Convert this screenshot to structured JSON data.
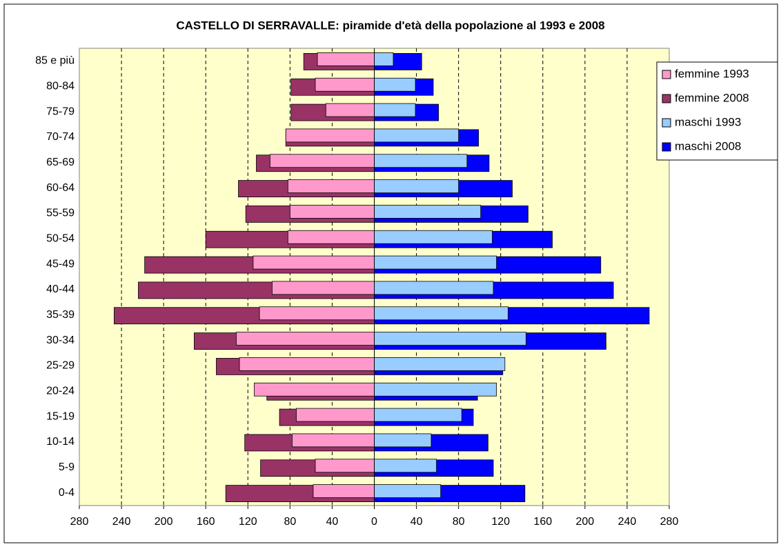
{
  "chart_data": {
    "type": "pyramid",
    "title": "CASTELLO DI SERRAVALLE: piramide d'età della popolazione al 1993 e 2008",
    "categories": [
      "0-4",
      "5-9",
      "10-14",
      "15-19",
      "20-24",
      "25-29",
      "30-34",
      "35-39",
      "40-44",
      "45-49",
      "50-54",
      "55-59",
      "60-64",
      "65-69",
      "70-74",
      "75-79",
      "80-84",
      "85 e più"
    ],
    "series": [
      {
        "name": "femmine 2008",
        "color": "#993366",
        "values": [
          -141,
          -108,
          -123,
          -90,
          -102,
          -150,
          -171,
          -247,
          -224,
          -218,
          -160,
          -122,
          -129,
          -112,
          -84,
          -79,
          -79,
          -67
        ]
      },
      {
        "name": "femmine 1993",
        "color": "#ff99cc",
        "values": [
          -58,
          -56,
          -78,
          -74,
          -114,
          -128,
          -131,
          -109,
          -97,
          -115,
          -82,
          -80,
          -82,
          -99,
          -84,
          -46,
          -56,
          -54
        ]
      },
      {
        "name": "maschi 2008",
        "color": "#0000ff",
        "values": [
          143,
          113,
          108,
          94,
          98,
          122,
          220,
          261,
          227,
          215,
          169,
          146,
          131,
          109,
          99,
          61,
          56,
          45
        ]
      },
      {
        "name": "maschi 1993",
        "color": "#99ccff",
        "values": [
          63,
          59,
          54,
          83,
          116,
          124,
          144,
          127,
          113,
          116,
          112,
          101,
          80,
          88,
          80,
          39,
          39,
          18
        ]
      }
    ],
    "legend_order": [
      1,
      0,
      3,
      2
    ],
    "xlim": [
      -280,
      280
    ],
    "xticks": [
      {
        "value": -280,
        "label": "280"
      },
      {
        "value": -240,
        "label": "240"
      },
      {
        "value": -200,
        "label": "200"
      },
      {
        "value": -160,
        "label": "160"
      },
      {
        "value": -120,
        "label": "120"
      },
      {
        "value": -80,
        "label": "80"
      },
      {
        "value": -40,
        "label": "40"
      },
      0,
      40,
      80,
      120,
      160,
      200,
      240,
      280
    ],
    "grid": true,
    "legend": "right",
    "plot_background": "#ffffcc"
  }
}
